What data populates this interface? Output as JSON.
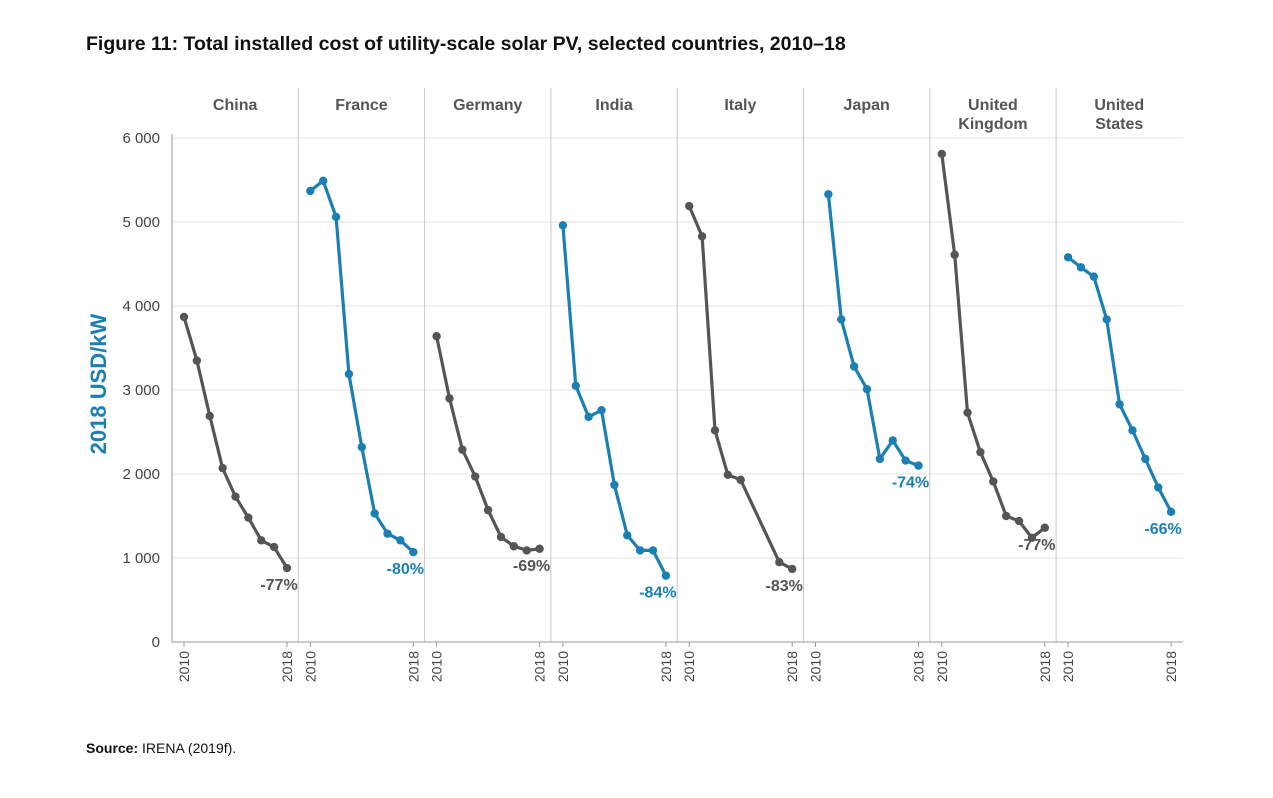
{
  "figure": {
    "title": "Figure 11: Total installed cost of utility-scale solar PV, selected countries, 2010–18",
    "source_label": "Source:",
    "source_text": " IRENA (2019f)."
  },
  "chart_data": {
    "type": "line",
    "ylabel": "2018 USD/kW",
    "ylim": [
      0,
      6000
    ],
    "yticks": [
      0,
      1000,
      2000,
      3000,
      4000,
      5000,
      6000
    ],
    "ytick_labels": [
      "0",
      "1 000",
      "2 000",
      "3 000",
      "4 000",
      "5 000",
      "6 000"
    ],
    "x": [
      2010,
      2011,
      2012,
      2013,
      2014,
      2015,
      2016,
      2017,
      2018
    ],
    "xtick_labels": [
      "2010",
      "2018"
    ],
    "grid": true,
    "colors": {
      "dark": "#555555",
      "blue": "#1a7fb3"
    },
    "panels": [
      {
        "name": [
          "China"
        ],
        "color": "dark",
        "change": "-77%",
        "values": [
          3870,
          3350,
          2690,
          2070,
          1730,
          1480,
          1210,
          1130,
          880
        ]
      },
      {
        "name": [
          "France"
        ],
        "color": "blue",
        "change": "-80%",
        "values": [
          5370,
          5490,
          5060,
          3190,
          2320,
          1530,
          1290,
          1210,
          1070
        ]
      },
      {
        "name": [
          "Germany"
        ],
        "color": "dark",
        "change": "-69%",
        "values": [
          3640,
          2900,
          2290,
          1970,
          1570,
          1250,
          1140,
          1090,
          1110
        ]
      },
      {
        "name": [
          "India"
        ],
        "color": "blue",
        "change": "-84%",
        "values": [
          4960,
          3050,
          2680,
          2760,
          1870,
          1270,
          1090,
          1090,
          790
        ]
      },
      {
        "name": [
          "Italy"
        ],
        "color": "dark",
        "change": "-83%",
        "values": [
          5190,
          4830,
          2520,
          1990,
          1930,
          null,
          null,
          950,
          870
        ]
      },
      {
        "name": [
          "Japan"
        ],
        "color": "blue",
        "change": "-74%",
        "values": [
          null,
          5330,
          3840,
          3280,
          3010,
          2180,
          2400,
          2160,
          2100
        ]
      },
      {
        "name": [
          "United",
          "Kingdom"
        ],
        "color": "dark",
        "change": "-77%",
        "values": [
          5810,
          4610,
          2730,
          2260,
          1910,
          1500,
          1440,
          1240,
          1360
        ]
      },
      {
        "name": [
          "United",
          "States"
        ],
        "color": "blue",
        "change": "-66%",
        "values": [
          4580,
          4460,
          4350,
          3840,
          2830,
          2520,
          2180,
          1840,
          1550
        ]
      }
    ]
  }
}
